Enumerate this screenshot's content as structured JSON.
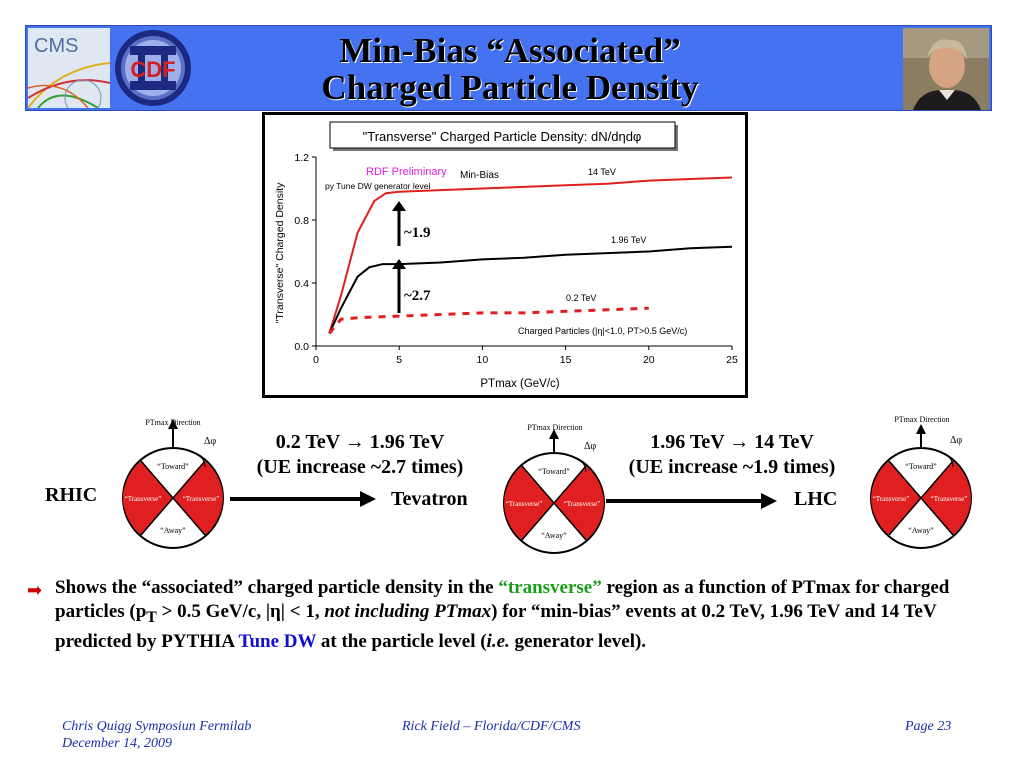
{
  "title": {
    "line1": "Min-Bias “Associated”",
    "line2": "Charged Particle Density"
  },
  "logos": {
    "cms": "CMS",
    "cdf": "CDF"
  },
  "chart_data": {
    "type": "line",
    "title": "\"Transverse\" Charged Particle Density: dN/dηdφ",
    "xlabel": "PTmax (GeV/c)",
    "ylabel": "\"Transverse\" Charged Density",
    "xlim": [
      0,
      25
    ],
    "ylim": [
      0,
      1.2
    ],
    "xticks": [
      0,
      5,
      10,
      15,
      20,
      25
    ],
    "yticks": [
      0.0,
      0.4,
      0.8,
      1.2
    ],
    "ytick_labels": [
      "0.0",
      "0.4",
      "0.8",
      "1.2"
    ],
    "grid": false,
    "series": [
      {
        "name": "14 TeV",
        "color": "#e02020",
        "style": "solid",
        "x": [
          0.8,
          1.5,
          2.5,
          3.5,
          4.2,
          5,
          7.5,
          10,
          12.5,
          15,
          17.5,
          20,
          22.5,
          25
        ],
        "y": [
          0.08,
          0.32,
          0.72,
          0.92,
          0.97,
          0.98,
          0.99,
          1.0,
          1.01,
          1.02,
          1.03,
          1.05,
          1.06,
          1.07
        ]
      },
      {
        "name": "1.96 TeV",
        "color": "#000000",
        "style": "solid",
        "x": [
          0.8,
          1.5,
          2.5,
          3.2,
          4,
          5,
          7.5,
          10,
          12.5,
          15,
          17.5,
          20,
          22.5,
          25
        ],
        "y": [
          0.08,
          0.24,
          0.44,
          0.5,
          0.52,
          0.52,
          0.53,
          0.55,
          0.56,
          0.58,
          0.59,
          0.6,
          0.62,
          0.63
        ]
      },
      {
        "name": "0.2 TeV",
        "color": "#e02020",
        "style": "dashed",
        "x": [
          0.8,
          1.5,
          2.5,
          5,
          7.5,
          10,
          12.5,
          15,
          17.5,
          20
        ],
        "y": [
          0.08,
          0.17,
          0.18,
          0.19,
          0.2,
          0.21,
          0.21,
          0.22,
          0.23,
          0.24
        ]
      }
    ],
    "annotations": {
      "rdf": "RDF Preliminary",
      "tune": "py Tune DW generator level",
      "minbias": "Min-Bias",
      "label_14": "14 TeV",
      "label_196": "1.96 TeV",
      "label_02": "0.2 TeV",
      "ratio_top": "~1.9",
      "ratio_bottom": "~2.7",
      "cuts": "Charged Particles (|η|<1.0, PT>0.5 GeV/c)"
    }
  },
  "diagrams": {
    "ptmax_label": "PTmax Direction",
    "dphi": "Δφ",
    "toward": "“Toward”",
    "transverse": "“Transverse”",
    "away": "“Away”"
  },
  "transitions": {
    "rhic": "RHIC",
    "tevatron": "Tevatron",
    "lhc": "LHC",
    "first_line1": "0.2 TeV → 1.96 TeV",
    "first_line2": "(UE increase ~2.7 times)",
    "second_line1": "1.96 TeV → 14 TeV",
    "second_line2": "(UE increase ~1.9 times)"
  },
  "body": {
    "bullet": "➡",
    "p1": "Shows the “associated” charged particle density in the ",
    "transverse": "“transverse”",
    "p2": " region as a function of PTmax for charged particles (p",
    "sub_T": "T",
    "p3": " > 0.5 GeV/c, |η| < 1, ",
    "italic": "not including PTmax",
    "p4": ") for “min-bias” events at 0.2 TeV, 1.96 TeV and 14 TeV predicted by PYTHIA ",
    "tune": "Tune DW",
    "p5": " at the particle level (",
    "ie": "i.e.",
    "p6": " generator level)."
  },
  "footer": {
    "left1": "Chris Quigg Symposiun Fermilab",
    "left2": "December 14, 2009",
    "center": "Rick Field – Florida/CDF/CMS",
    "right": "Page 23"
  }
}
